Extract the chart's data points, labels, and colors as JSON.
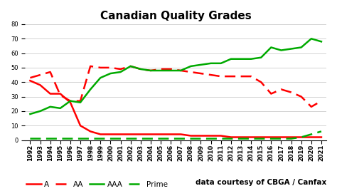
{
  "title": "Canadian Quality Grades",
  "years": [
    1992,
    1993,
    1994,
    1995,
    1996,
    1997,
    1998,
    1999,
    2000,
    2001,
    2002,
    2003,
    2004,
    2005,
    2006,
    2007,
    2008,
    2009,
    2010,
    2011,
    2012,
    2013,
    2014,
    2015,
    2016,
    2017,
    2018,
    2019,
    2020,
    2021
  ],
  "A": [
    41,
    38,
    32,
    32,
    26,
    10,
    6,
    4,
    4,
    4,
    4,
    4,
    4,
    4,
    4,
    4,
    3,
    3,
    3,
    3,
    2,
    2,
    2,
    2,
    2,
    2,
    2,
    2,
    2,
    2
  ],
  "AA": [
    43,
    45,
    47,
    31,
    27,
    27,
    51,
    50,
    50,
    49,
    51,
    49,
    48,
    49,
    49,
    48,
    47,
    46,
    45,
    44,
    44,
    44,
    44,
    40,
    32,
    35,
    33,
    30,
    23,
    27
  ],
  "AAA": [
    18,
    20,
    23,
    22,
    27,
    26,
    35,
    43,
    46,
    47,
    51,
    49,
    48,
    48,
    48,
    48,
    51,
    52,
    53,
    53,
    56,
    56,
    56,
    57,
    64,
    62,
    63,
    64,
    70,
    68
  ],
  "Prime": [
    1,
    1,
    1,
    1,
    1,
    1,
    1,
    1,
    1,
    1,
    1,
    1,
    1,
    1,
    1,
    1,
    1,
    1,
    1,
    1,
    1,
    1,
    1,
    1,
    1,
    1,
    1,
    2,
    4,
    6
  ],
  "A_color": "#ff0000",
  "AA_color": "#ff0000",
  "AAA_color": "#00aa00",
  "Prime_color": "#00aa00",
  "bg_color": "#ffffff",
  "grid_color": "#cccccc",
  "ylim": [
    0,
    80
  ],
  "yticks": [
    0,
    10,
    20,
    30,
    40,
    50,
    60,
    70,
    80
  ],
  "legend_text": "data courtesy of CBGA / Canfax",
  "title_fontsize": 11,
  "tick_fontsize": 6,
  "legend_fontsize": 7.5
}
